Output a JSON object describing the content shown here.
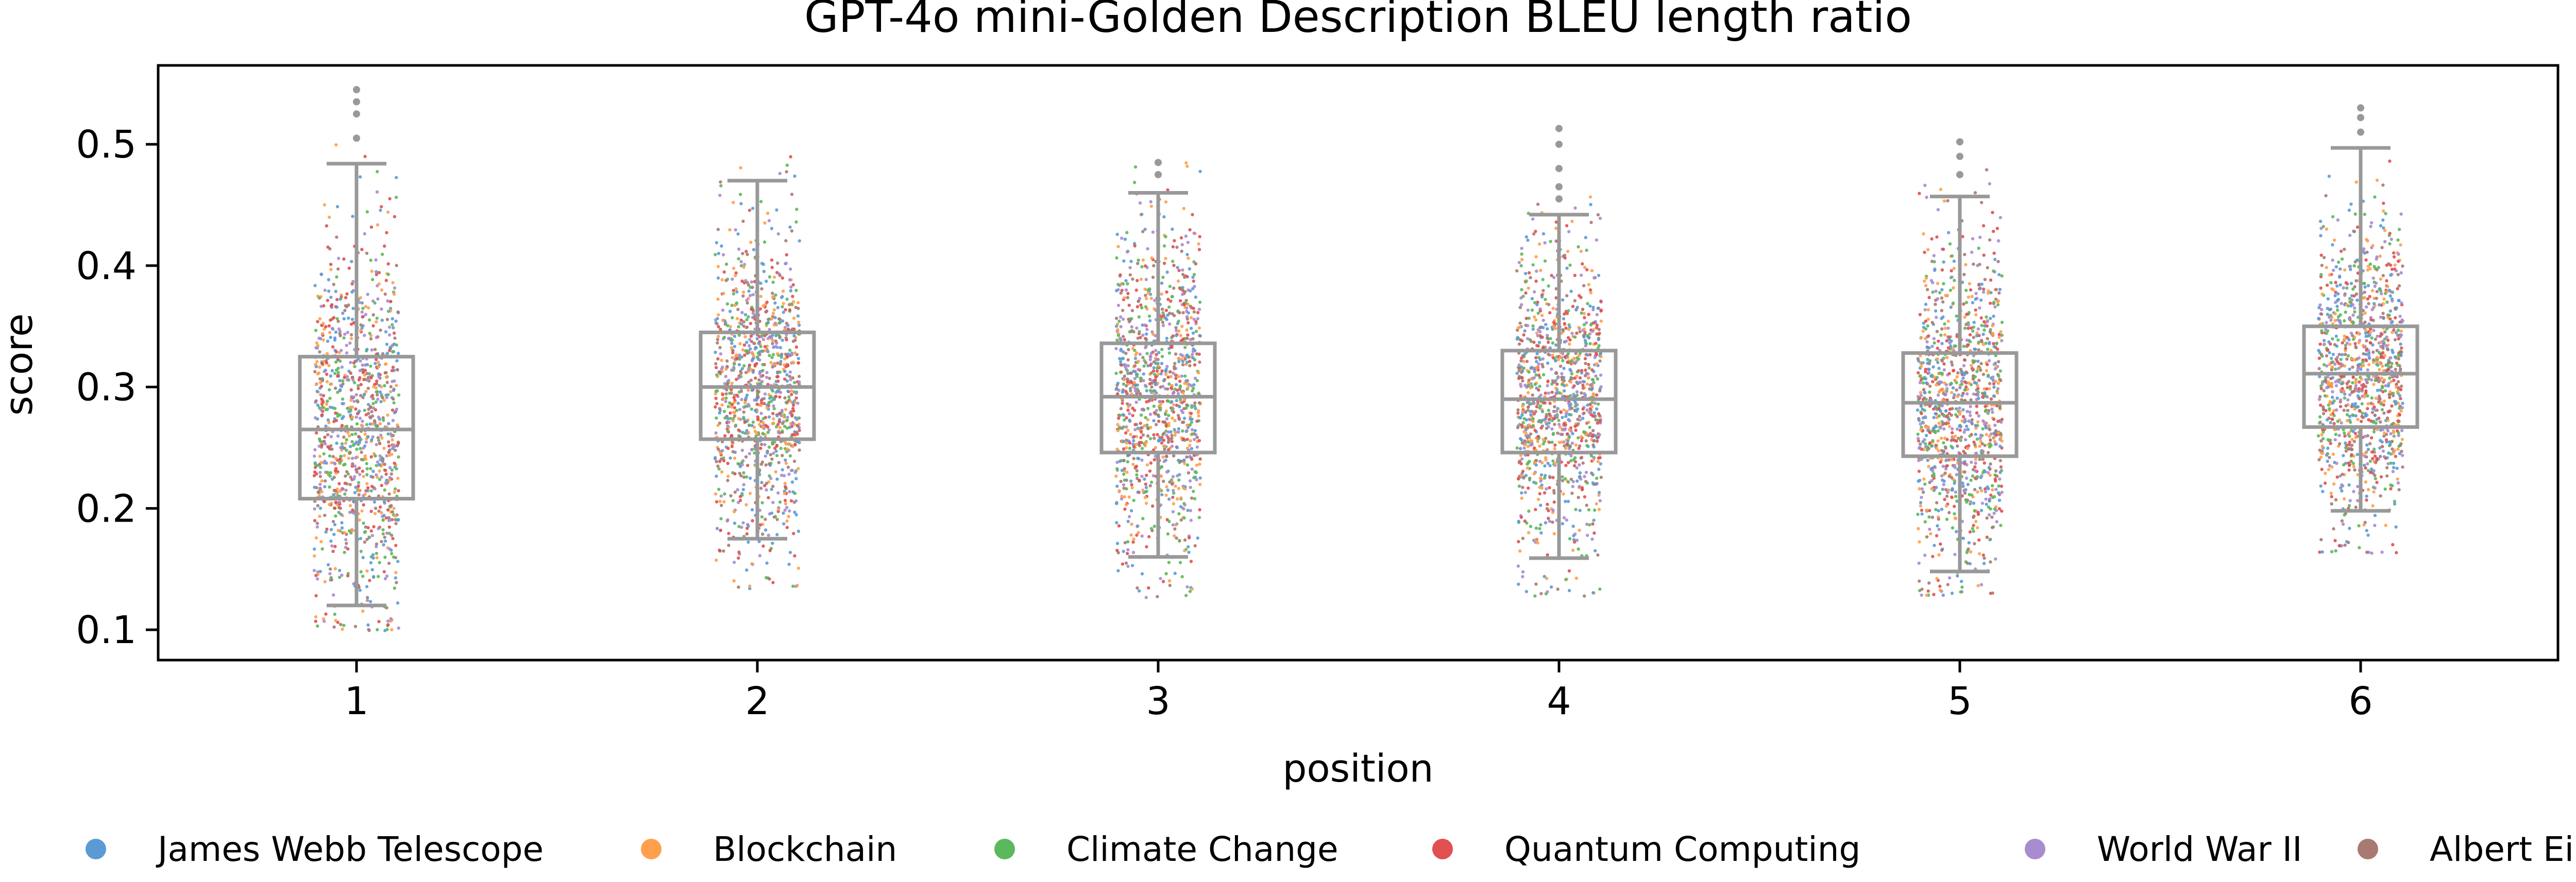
{
  "chart_data": {
    "type": "box-strip",
    "title": "GPT-4o mini-Golden Description BLEU length ratio",
    "xlabel": "position",
    "ylabel": "score",
    "categories": [
      "1",
      "2",
      "3",
      "4",
      "5",
      "6"
    ],
    "ylim": [
      0.075,
      0.565
    ],
    "yticks": [
      0.1,
      0.2,
      0.3,
      0.4,
      0.5
    ],
    "ytick_labels": [
      "0.1",
      "0.2",
      "0.3",
      "0.4",
      "0.5"
    ],
    "grid": false,
    "legend_position": "bottom",
    "box_color": "#999999",
    "boxes": [
      {
        "position": "1",
        "whisker_low": 0.12,
        "q1": 0.208,
        "median": 0.265,
        "q3": 0.325,
        "whisker_high": 0.484,
        "outliers": [
          0.505,
          0.525,
          0.535,
          0.545
        ]
      },
      {
        "position": "2",
        "whisker_low": 0.175,
        "q1": 0.257,
        "median": 0.3,
        "q3": 0.345,
        "whisker_high": 0.47,
        "outliers": []
      },
      {
        "position": "3",
        "whisker_low": 0.16,
        "q1": 0.246,
        "median": 0.292,
        "q3": 0.336,
        "whisker_high": 0.46,
        "outliers": [
          0.475,
          0.485
        ]
      },
      {
        "position": "4",
        "whisker_low": 0.159,
        "q1": 0.246,
        "median": 0.29,
        "q3": 0.33,
        "whisker_high": 0.442,
        "outliers": [
          0.455,
          0.465,
          0.48,
          0.5,
          0.513
        ]
      },
      {
        "position": "5",
        "whisker_low": 0.148,
        "q1": 0.243,
        "median": 0.287,
        "q3": 0.328,
        "whisker_high": 0.457,
        "outliers": [
          0.475,
          0.49,
          0.502
        ]
      },
      {
        "position": "6",
        "whisker_low": 0.198,
        "q1": 0.267,
        "median": 0.311,
        "q3": 0.35,
        "whisker_high": 0.497,
        "outliers": [
          0.51,
          0.522,
          0.53
        ]
      }
    ],
    "point_cloud": [
      {
        "position": "1",
        "min": 0.098,
        "max": 0.5,
        "center": 0.265,
        "spread": 0.075
      },
      {
        "position": "2",
        "min": 0.133,
        "max": 0.49,
        "center": 0.3,
        "spread": 0.066
      },
      {
        "position": "3",
        "min": 0.125,
        "max": 0.485,
        "center": 0.292,
        "spread": 0.068
      },
      {
        "position": "4",
        "min": 0.127,
        "max": 0.46,
        "center": 0.29,
        "spread": 0.064
      },
      {
        "position": "5",
        "min": 0.128,
        "max": 0.48,
        "center": 0.287,
        "spread": 0.065
      },
      {
        "position": "6",
        "min": 0.163,
        "max": 0.5,
        "center": 0.311,
        "spread": 0.063
      }
    ],
    "series": [
      {
        "name": "James Webb Telescope",
        "color": "#5b9bd5"
      },
      {
        "name": "Blockchain",
        "color": "#ffa04d"
      },
      {
        "name": "Climate Change",
        "color": "#5cb85c"
      },
      {
        "name": "Quantum Computing",
        "color": "#e05050"
      },
      {
        "name": "World War II",
        "color": "#a98bcf"
      },
      {
        "name": "Albert Einstein",
        "color": "#a87a72"
      }
    ]
  }
}
